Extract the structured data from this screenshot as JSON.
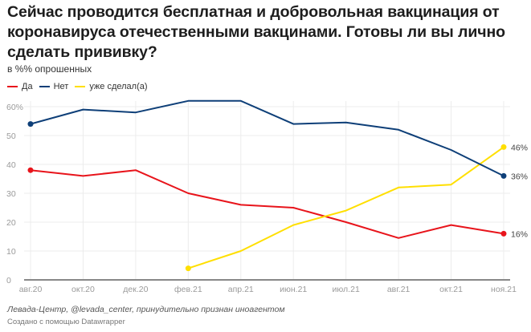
{
  "header": {
    "title": "Сейчас проводится бесплатная и добровольная вакцинация от коронавируса отечественными вакцинами. Готовы ли вы лично сделать прививку?",
    "subtitle": "в %% опрошенных"
  },
  "legend": [
    {
      "label": "Да",
      "color": "#e8141b"
    },
    {
      "label": "Нет",
      "color": "#0e3f78"
    },
    {
      "label": "уже сделал(а)",
      "color": "#ffdf00"
    }
  ],
  "footer": {
    "source": "Левада-Центр, @levada_center, принудительно признан иноагентом",
    "credit": "Создано с помощью Datawrapper"
  },
  "chart_data": {
    "type": "line",
    "title": "Сейчас проводится бесплатная и добровольная вакцинация от коронавируса отечественными вакцинами. Готовы ли вы лично сделать прививку?",
    "subtitle": "в %% опрошенных",
    "xlabel": "",
    "ylabel": "",
    "categories": [
      "авг.20",
      "окт.20",
      "дек.20",
      "фев.21",
      "апр.21",
      "июн.21",
      "июл.21",
      "авг.21",
      "окт.21",
      "ноя.21"
    ],
    "ylim": [
      0,
      62
    ],
    "yticks": [
      0,
      10,
      20,
      30,
      40,
      50,
      60
    ],
    "ytick_labels": [
      "0",
      "10",
      "20",
      "30",
      "40",
      "50",
      "60%"
    ],
    "grid": true,
    "legend_position": "top-left",
    "series": [
      {
        "name": "Да",
        "color": "#e8141b",
        "values": [
          38,
          36,
          38,
          30,
          26,
          25,
          20,
          14.5,
          19,
          16
        ],
        "end_label": "16%"
      },
      {
        "name": "Нет",
        "color": "#0e3f78",
        "values": [
          54,
          59,
          58,
          62,
          62,
          54,
          54.5,
          52,
          45,
          36
        ],
        "end_label": "36%"
      },
      {
        "name": "уже сделал(а)",
        "color": "#ffdf00",
        "values": [
          null,
          null,
          null,
          4,
          10,
          19,
          24,
          32,
          33,
          46
        ],
        "end_label": "46%"
      }
    ]
  }
}
